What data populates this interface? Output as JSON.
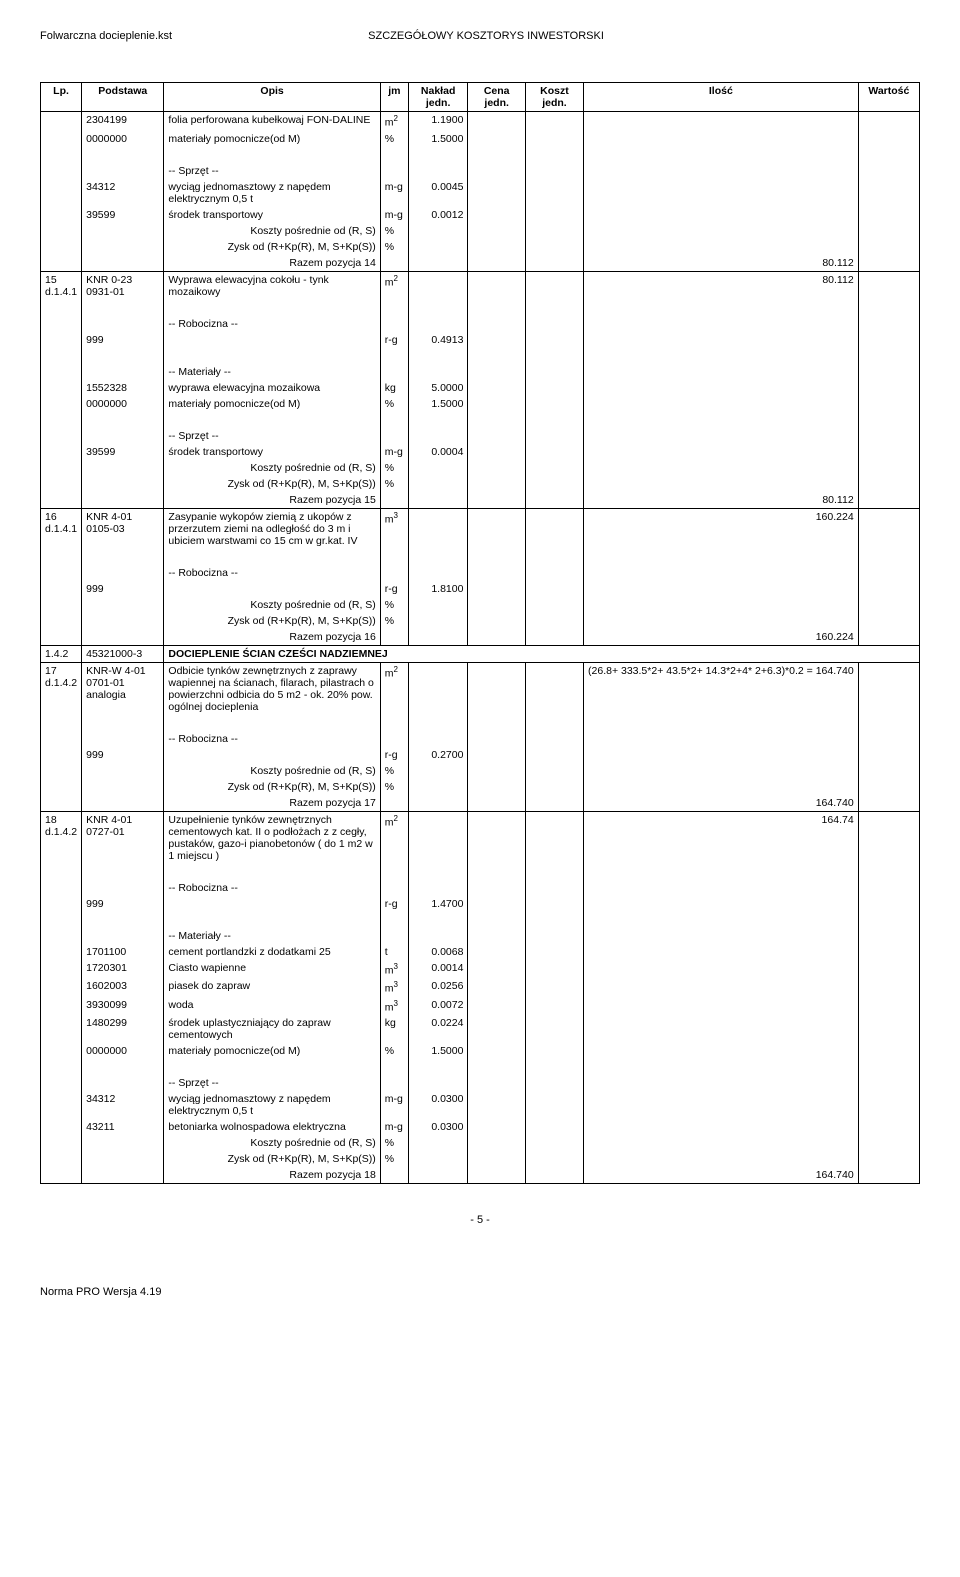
{
  "header": {
    "left": "Folwarczna docieplenie.kst",
    "center": "SZCZEGÓŁOWY KOSZTORYS INWESTORSKI"
  },
  "columns": [
    "Lp.",
    "Podstawa",
    "Opis",
    "jm",
    "Nakład jedn.",
    "Cena jedn.",
    "Koszt jedn.",
    "Ilość",
    "Wartość"
  ],
  "rows": [
    {
      "type": "data",
      "lp": "",
      "podstawa": "2304199",
      "opis": "folia perforowana kubełkowaj FON-DALINE",
      "jm": "m2",
      "naklad": "1.1900",
      "border": "nb"
    },
    {
      "type": "data",
      "lp": "",
      "podstawa": "0000000",
      "opis": "materiały pomocnicze(od M)",
      "jm": "%",
      "naklad": "1.5000",
      "border": "nb"
    },
    {
      "type": "blank",
      "border": "nb"
    },
    {
      "type": "data",
      "lp": "",
      "podstawa": "",
      "opis": "-- Sprzęt --",
      "border": "nb"
    },
    {
      "type": "data",
      "lp": "",
      "podstawa": "34312",
      "opis": "wyciąg jednomasztowy z napędem elektrycznym 0,5 t",
      "jm": "m-g",
      "naklad": "0.0045",
      "border": "nb"
    },
    {
      "type": "data",
      "lp": "",
      "podstawa": "39599",
      "opis": "środek transportowy",
      "jm": "m-g",
      "naklad": "0.0012",
      "border": "nb"
    },
    {
      "type": "data",
      "lp": "",
      "podstawa": "",
      "opis": "Koszty pośrednie od (R, S)",
      "opis_align": "right",
      "jm": "%",
      "border": "nb"
    },
    {
      "type": "data",
      "lp": "",
      "podstawa": "",
      "opis": "Zysk od (R+Kp(R), M, S+Kp(S))",
      "opis_align": "right",
      "jm": "%",
      "border": "nb"
    },
    {
      "type": "data",
      "lp": "",
      "podstawa": "",
      "opis": "Razem pozycja 14",
      "opis_align": "right",
      "ilosc": "80.112",
      "border": "nt"
    },
    {
      "type": "data",
      "lp": "15 d.1.4.1",
      "podstawa": "KNR 0-23 0931-01",
      "opis": "Wyprawa elewacyjna cokołu - tynk mozaikowy",
      "jm": "m2",
      "ilosc": "80.112",
      "border": "nb"
    },
    {
      "type": "blank",
      "border": "nb"
    },
    {
      "type": "data",
      "lp": "",
      "podstawa": "",
      "opis": "-- Robocizna --",
      "border": "nb"
    },
    {
      "type": "data",
      "lp": "",
      "podstawa": "999",
      "jm": "r-g",
      "naklad": "0.4913",
      "border": "nb"
    },
    {
      "type": "blank",
      "border": "nb"
    },
    {
      "type": "data",
      "lp": "",
      "podstawa": "",
      "opis": "-- Materiały --",
      "border": "nb"
    },
    {
      "type": "data",
      "lp": "",
      "podstawa": "1552328",
      "opis": "wyprawa elewacyjna mozaikowa",
      "jm": "kg",
      "naklad": "5.0000",
      "border": "nb"
    },
    {
      "type": "data",
      "lp": "",
      "podstawa": "0000000",
      "opis": "materiały pomocnicze(od M)",
      "jm": "%",
      "naklad": "1.5000",
      "border": "nb"
    },
    {
      "type": "blank",
      "border": "nb"
    },
    {
      "type": "data",
      "lp": "",
      "podstawa": "",
      "opis": "-- Sprzęt --",
      "border": "nb"
    },
    {
      "type": "data",
      "lp": "",
      "podstawa": "39599",
      "opis": "środek transportowy",
      "jm": "m-g",
      "naklad": "0.0004",
      "border": "nb"
    },
    {
      "type": "data",
      "lp": "",
      "podstawa": "",
      "opis": "Koszty pośrednie od (R, S)",
      "opis_align": "right",
      "jm": "%",
      "border": "nb"
    },
    {
      "type": "data",
      "lp": "",
      "podstawa": "",
      "opis": "Zysk od (R+Kp(R), M, S+Kp(S))",
      "opis_align": "right",
      "jm": "%",
      "border": "nb"
    },
    {
      "type": "data",
      "lp": "",
      "podstawa": "",
      "opis": "Razem pozycja 15",
      "opis_align": "right",
      "ilosc": "80.112",
      "border": "nt"
    },
    {
      "type": "data",
      "lp": "16 d.1.4.1",
      "podstawa": "KNR 4-01 0105-03",
      "opis": "Zasypanie wykopów ziemią z ukopów z przerzutem ziemi na odległość do 3 m i ubiciem warstwami co 15 cm w gr.kat. IV",
      "jm": "m3",
      "ilosc": "160.224",
      "border": "nb"
    },
    {
      "type": "blank",
      "border": "nb"
    },
    {
      "type": "data",
      "lp": "",
      "podstawa": "",
      "opis": "-- Robocizna --",
      "border": "nb"
    },
    {
      "type": "data",
      "lp": "",
      "podstawa": "999",
      "jm": "r-g",
      "naklad": "1.8100",
      "border": "nb"
    },
    {
      "type": "data",
      "lp": "",
      "podstawa": "",
      "opis": "Koszty pośrednie od (R, S)",
      "opis_align": "right",
      "jm": "%",
      "border": "nb"
    },
    {
      "type": "data",
      "lp": "",
      "podstawa": "",
      "opis": "Zysk od (R+Kp(R), M, S+Kp(S))",
      "opis_align": "right",
      "jm": "%",
      "border": "nb"
    },
    {
      "type": "data",
      "lp": "",
      "podstawa": "",
      "opis": "Razem pozycja 16",
      "opis_align": "right",
      "ilosc": "160.224",
      "border": "nt"
    },
    {
      "type": "data",
      "lp": "1.4.2",
      "podstawa": "45321000-3",
      "opis": "DOCIEPLENIE ŚCIAN CZEŚCI NADZIEMNEJ",
      "opis_bold": true,
      "span_opis": true
    },
    {
      "type": "data",
      "lp": "17 d.1.4.2",
      "podstawa": "KNR-W 4-01 0701-01 analogia",
      "opis": "Odbicie tynków zewnętrznych z zaprawy wapiennej na ścianach, filarach, pilastrach o powierzchni odbicia do 5 m2 - ok. 20% pow. ogólnej docieplenia",
      "jm": "m2",
      "ilosc": "(26.8+ 333.5*2+ 43.5*2+ 14.3*2+4* 2+6.3)*0.2 = 164.740",
      "border": "nb"
    },
    {
      "type": "blank",
      "border": "nb"
    },
    {
      "type": "data",
      "lp": "",
      "podstawa": "",
      "opis": "-- Robocizna --",
      "border": "nb"
    },
    {
      "type": "data",
      "lp": "",
      "podstawa": "999",
      "jm": "r-g",
      "naklad": "0.2700",
      "border": "nb"
    },
    {
      "type": "data",
      "lp": "",
      "podstawa": "",
      "opis": "Koszty pośrednie od (R, S)",
      "opis_align": "right",
      "jm": "%",
      "border": "nb"
    },
    {
      "type": "data",
      "lp": "",
      "podstawa": "",
      "opis": "Zysk od (R+Kp(R), M, S+Kp(S))",
      "opis_align": "right",
      "jm": "%",
      "border": "nb"
    },
    {
      "type": "data",
      "lp": "",
      "podstawa": "",
      "opis": "Razem pozycja 17",
      "opis_align": "right",
      "ilosc": "164.740",
      "border": "nt"
    },
    {
      "type": "data",
      "lp": "18 d.1.4.2",
      "podstawa": "KNR 4-01 0727-01",
      "opis": "Uzupełnienie tynków zewnętrznych cementowych kat. II o podłożach z z cegły, pustaków, gazo-i pianobetonów ( do 1 m2 w 1 miejscu )",
      "jm": "m2",
      "ilosc": "164.74",
      "border": "nb"
    },
    {
      "type": "blank",
      "border": "nb"
    },
    {
      "type": "data",
      "lp": "",
      "podstawa": "",
      "opis": "-- Robocizna --",
      "border": "nb"
    },
    {
      "type": "data",
      "lp": "",
      "podstawa": "999",
      "jm": "r-g",
      "naklad": "1.4700",
      "border": "nb"
    },
    {
      "type": "blank",
      "border": "nb"
    },
    {
      "type": "data",
      "lp": "",
      "podstawa": "",
      "opis": "-- Materiały --",
      "border": "nb"
    },
    {
      "type": "data",
      "lp": "",
      "podstawa": "1701100",
      "opis": "cement portlandzki z dodatkami 25",
      "jm": "t",
      "naklad": "0.0068",
      "border": "nb"
    },
    {
      "type": "data",
      "lp": "",
      "podstawa": "1720301",
      "opis": "Ciasto wapienne",
      "jm": "m3",
      "naklad": "0.0014",
      "border": "nb"
    },
    {
      "type": "data",
      "lp": "",
      "podstawa": "1602003",
      "opis": "piasek do zapraw",
      "jm": "m3",
      "naklad": "0.0256",
      "border": "nb"
    },
    {
      "type": "data",
      "lp": "",
      "podstawa": "3930099",
      "opis": "woda",
      "jm": "m3",
      "naklad": "0.0072",
      "border": "nb"
    },
    {
      "type": "data",
      "lp": "",
      "podstawa": "1480299",
      "opis": "środek uplastyczniający do zapraw cementowych",
      "jm": "kg",
      "naklad": "0.0224",
      "border": "nb"
    },
    {
      "type": "data",
      "lp": "",
      "podstawa": "0000000",
      "opis": "materiały pomocnicze(od M)",
      "jm": "%",
      "naklad": "1.5000",
      "border": "nb"
    },
    {
      "type": "blank",
      "border": "nb"
    },
    {
      "type": "data",
      "lp": "",
      "podstawa": "",
      "opis": "-- Sprzęt --",
      "border": "nb"
    },
    {
      "type": "data",
      "lp": "",
      "podstawa": "34312",
      "opis": "wyciąg jednomasztowy z napędem elektrycznym 0,5 t",
      "jm": "m-g",
      "naklad": "0.0300",
      "border": "nb"
    },
    {
      "type": "data",
      "lp": "",
      "podstawa": "43211",
      "opis": "betoniarka wolnospadowa elektryczna",
      "jm": "m-g",
      "naklad": "0.0300",
      "border": "nb"
    },
    {
      "type": "data",
      "lp": "",
      "podstawa": "",
      "opis": "Koszty pośrednie od (R, S)",
      "opis_align": "right",
      "jm": "%",
      "border": "nb"
    },
    {
      "type": "data",
      "lp": "",
      "podstawa": "",
      "opis": "Zysk od (R+Kp(R), M, S+Kp(S))",
      "opis_align": "right",
      "jm": "%",
      "border": "nb"
    },
    {
      "type": "data",
      "lp": "",
      "podstawa": "",
      "opis": "Razem pozycja 18",
      "opis_align": "right",
      "ilosc": "164.740",
      "border": "nt"
    }
  ],
  "footer": {
    "pagenum": "- 5 -",
    "program": "Norma PRO Wersja 4.19"
  }
}
